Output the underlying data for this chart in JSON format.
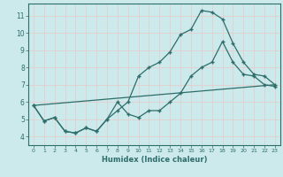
{
  "xlabel": "Humidex (Indice chaleur)",
  "xlim": [
    -0.5,
    23.5
  ],
  "ylim": [
    3.5,
    11.7
  ],
  "yticks": [
    4,
    5,
    6,
    7,
    8,
    9,
    10,
    11
  ],
  "xticks": [
    0,
    1,
    2,
    3,
    4,
    5,
    6,
    7,
    8,
    9,
    10,
    11,
    12,
    13,
    14,
    15,
    16,
    17,
    18,
    19,
    20,
    21,
    22,
    23
  ],
  "background_color": "#cce9ec",
  "grid_color": "#b0d8dc",
  "line_color": "#2d6e6a",
  "line1_x": [
    0,
    1,
    2,
    3,
    4,
    5,
    6,
    7,
    8,
    9,
    10,
    11,
    12,
    13,
    14,
    15,
    16,
    17,
    18,
    19,
    20,
    21,
    22,
    23
  ],
  "line1_y": [
    5.8,
    4.9,
    5.1,
    4.3,
    4.2,
    4.5,
    4.3,
    5.0,
    6.0,
    5.3,
    5.1,
    5.5,
    5.5,
    6.0,
    6.5,
    7.5,
    8.0,
    8.3,
    9.5,
    8.3,
    7.6,
    7.5,
    7.0,
    6.9
  ],
  "line2_x": [
    0,
    1,
    2,
    3,
    4,
    5,
    6,
    7,
    8,
    9,
    10,
    11,
    12,
    13,
    14,
    15,
    16,
    17,
    18,
    19,
    20,
    21,
    22,
    23
  ],
  "line2_y": [
    5.8,
    4.9,
    5.1,
    4.3,
    4.2,
    4.5,
    4.3,
    5.0,
    5.5,
    6.0,
    7.5,
    8.0,
    8.3,
    8.9,
    9.9,
    10.2,
    11.3,
    11.2,
    10.8,
    9.4,
    8.3,
    7.6,
    7.5,
    7.0
  ],
  "line3_x": [
    0,
    23
  ],
  "line3_y": [
    5.8,
    7.0
  ]
}
